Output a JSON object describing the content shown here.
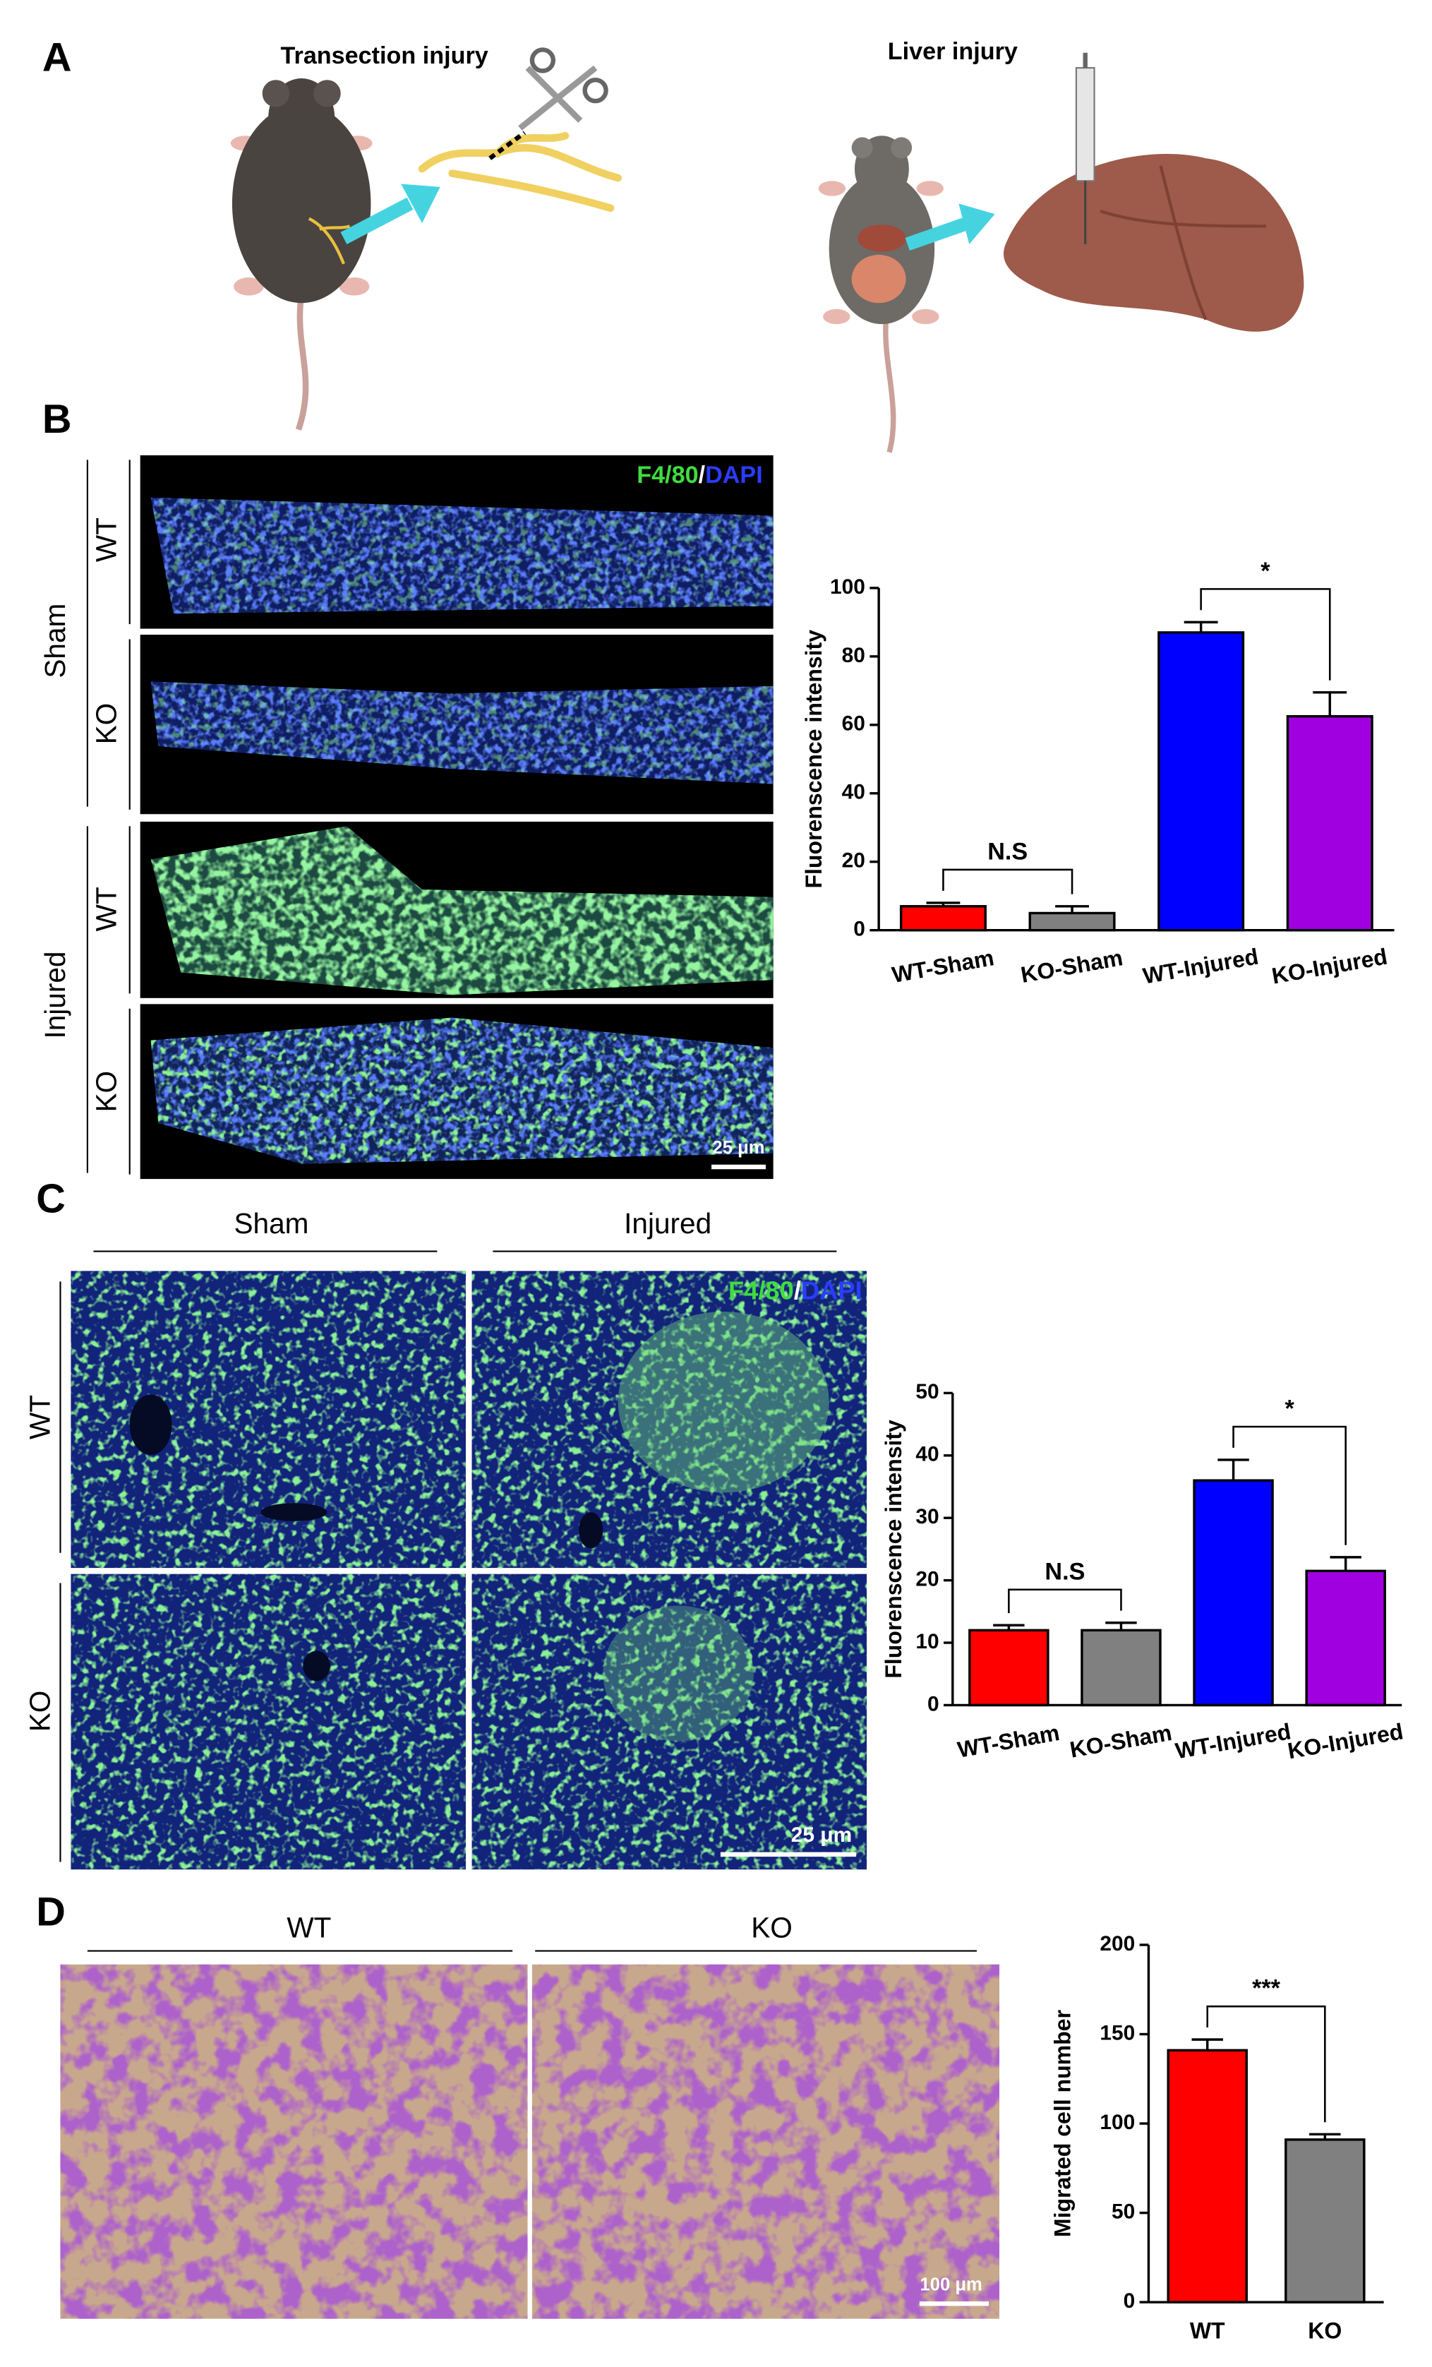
{
  "panel_labels": [
    "A",
    "B",
    "C",
    "D"
  ],
  "panel_a": {
    "left_title": "Transection injury",
    "right_title": "Liver injury"
  },
  "panel_b": {
    "stain": [
      "F4/80",
      "/",
      "DAPI"
    ],
    "group_labels": [
      "Sham",
      "Injured"
    ],
    "row_labels": [
      "WT",
      "KO",
      "WT",
      "KO"
    ],
    "scale_bar": "25 μm"
  },
  "panel_c": {
    "column_labels": [
      "Sham",
      "Injured"
    ],
    "row_labels": [
      "WT",
      "KO"
    ],
    "stain": [
      "F4/80",
      "/",
      "DAPI"
    ],
    "scale_bar": "25 μm"
  },
  "panel_d": {
    "column_labels": [
      "WT",
      "KO"
    ],
    "scale_bar": "100 μm"
  },
  "chart_data": [
    {
      "type": "bar",
      "y_label": "Fluorenscence intensity",
      "categories": [
        "WT-Sham",
        "KO-Sham",
        "WT-Injured",
        "KO-Injured"
      ],
      "values": [
        7,
        5,
        87,
        62.5
      ],
      "errors": [
        1,
        2,
        3,
        7
      ],
      "colors": [
        "#ff0000",
        "#808080",
        "#0000ff",
        "#a000e0"
      ],
      "ylim": [
        0,
        100
      ],
      "yticks": [
        0,
        20,
        40,
        60,
        80,
        100
      ],
      "annotations": [
        "N.S",
        "*"
      ]
    },
    {
      "type": "bar",
      "y_label": "Fluorenscence intensity",
      "categories": [
        "WT-Sham",
        "KO-Sham",
        "WT-Injured",
        "KO-Injured"
      ],
      "values": [
        12,
        12,
        36,
        21.5
      ],
      "errors": [
        0.8,
        1.2,
        3.3,
        2.2
      ],
      "colors": [
        "#ff0000",
        "#808080",
        "#0000ff",
        "#a000e0"
      ],
      "ylim": [
        0,
        50
      ],
      "yticks": [
        0,
        10,
        20,
        30,
        40,
        50
      ],
      "annotations": [
        "N.S",
        "*"
      ]
    },
    {
      "type": "bar",
      "y_label": "Migrated cell number",
      "categories": [
        "WT",
        "KO"
      ],
      "values": [
        141,
        91
      ],
      "errors": [
        6,
        3
      ],
      "colors": [
        "#ff0000",
        "#808080"
      ],
      "ylim": [
        0,
        200
      ],
      "yticks": [
        0,
        50,
        100,
        150,
        200
      ],
      "annotations": [
        "***"
      ]
    }
  ]
}
